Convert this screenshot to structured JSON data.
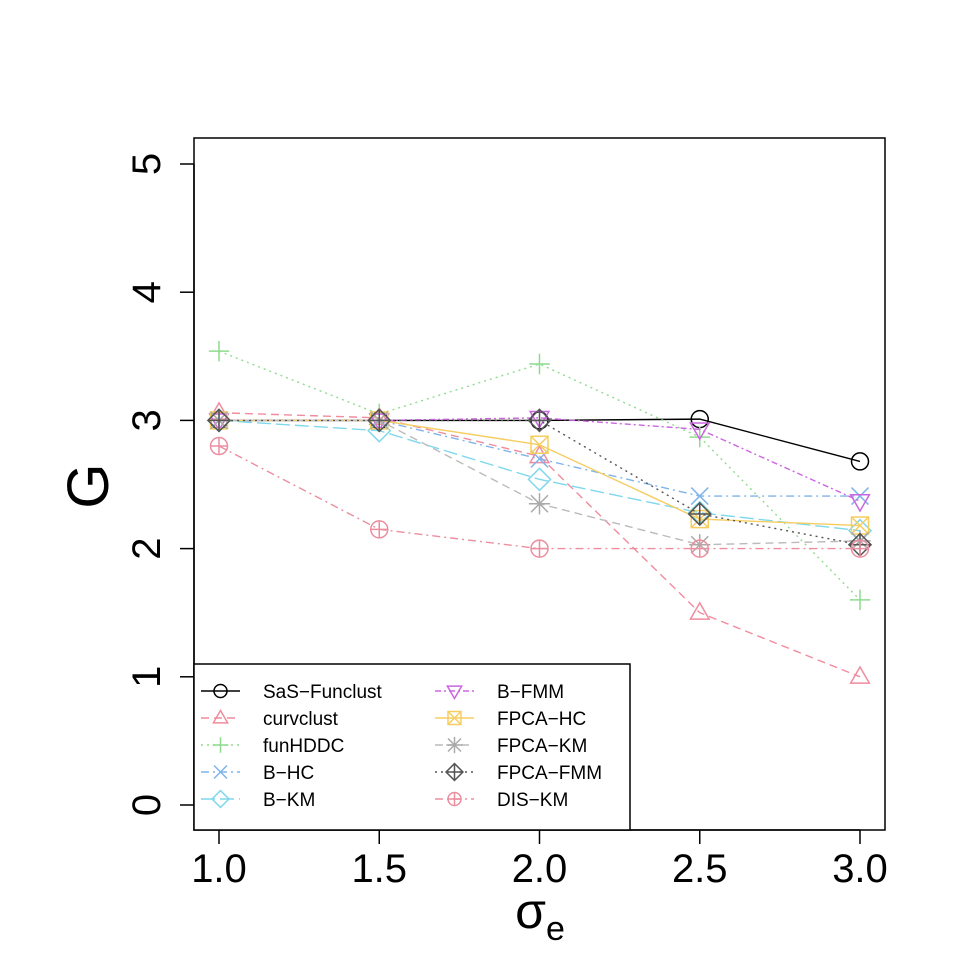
{
  "chart_data": {
    "type": "line",
    "xlabel": "σ",
    "xlabel_sub": "e",
    "ylabel": "G",
    "xlim": [
      1.0,
      3.0
    ],
    "ylim": [
      0,
      5
    ],
    "x": [
      1.0,
      1.5,
      2.0,
      2.5,
      3.0
    ],
    "x_tick_labels": [
      "1.0",
      "1.5",
      "2.0",
      "2.5",
      "3.0"
    ],
    "y_ticks": [
      0,
      1,
      2,
      3,
      4,
      5
    ],
    "y_tick_labels": [
      "0",
      "1",
      "2",
      "3",
      "4",
      "5"
    ],
    "grid": false,
    "legend_position": "bottom-left",
    "series": [
      {
        "name": "SaS−Funclust",
        "values": [
          3.0,
          3.0,
          3.0,
          3.01,
          2.68
        ],
        "color": "#000000",
        "dash": "",
        "marker": "circle",
        "marker_color": "#000000"
      },
      {
        "name": "curvclust",
        "values": [
          3.06,
          3.02,
          2.72,
          1.5,
          1.0
        ],
        "color": "#f08c9e",
        "dash": "8,5",
        "marker": "triangle",
        "marker_color": "#f08c9e"
      },
      {
        "name": "funHDDC",
        "values": [
          3.54,
          3.05,
          3.44,
          2.87,
          1.6
        ],
        "color": "#8fdc8f",
        "dash": "2,4",
        "marker": "plus",
        "marker_color": "#8fdc8f"
      },
      {
        "name": "B−HC",
        "values": [
          3.0,
          3.0,
          2.7,
          2.41,
          2.41
        ],
        "color": "#7fb4ea",
        "dash": "8,4,2,4",
        "marker": "x",
        "marker_color": "#7fb4ea"
      },
      {
        "name": "B−KM",
        "values": [
          3.0,
          2.92,
          2.54,
          2.28,
          2.14
        ],
        "color": "#7fd8ec",
        "dash": "14,5",
        "marker": "diamond",
        "marker_color": "#7fd8ec"
      },
      {
        "name": "B−FMM",
        "values": [
          3.0,
          3.0,
          3.02,
          2.93,
          2.37
        ],
        "color": "#cc66e0",
        "dash": "6,3,2,3",
        "marker": "down-triangle",
        "marker_color": "#cc66e0"
      },
      {
        "name": "FPCA−HC",
        "values": [
          3.0,
          3.0,
          2.81,
          2.23,
          2.18
        ],
        "color": "#f5cd60",
        "dash": "",
        "marker": "square-x",
        "marker_color": "#f5cd60"
      },
      {
        "name": "FPCA−KM",
        "values": [
          3.0,
          3.0,
          2.35,
          2.03,
          2.06
        ],
        "color": "#bbbbbb",
        "dash": "8,5",
        "marker": "asterisk",
        "marker_color": "#aaaaaa"
      },
      {
        "name": "FPCA−FMM",
        "values": [
          3.0,
          3.0,
          3.0,
          2.27,
          2.03
        ],
        "color": "#555555",
        "dash": "2,4",
        "marker": "diamond-plus",
        "marker_color": "#555555"
      },
      {
        "name": "DIS−KM",
        "values": [
          2.8,
          2.15,
          2.0,
          2.0,
          2.0
        ],
        "color": "#ec8ea0",
        "dash": "8,4,2,4",
        "marker": "circle-plus",
        "marker_color": "#ec8ea0"
      }
    ]
  }
}
